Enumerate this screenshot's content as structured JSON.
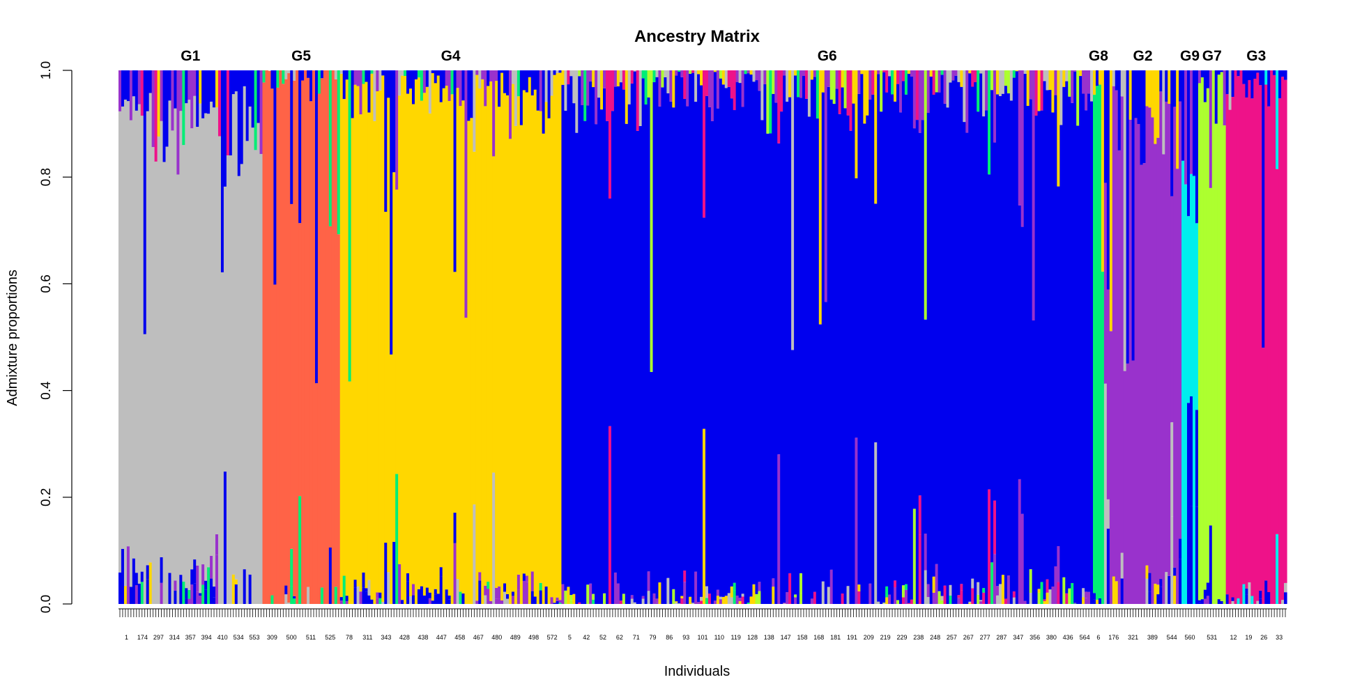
{
  "chart_data": {
    "type": "bar",
    "stacked": true,
    "title": "Ancestry Matrix",
    "xlabel": "Individuals",
    "ylabel": "Admixture proportions",
    "ylim": [
      0,
      1
    ],
    "yticks": [
      "0.0",
      "0.2",
      "0.4",
      "0.6",
      "0.8",
      "1.0"
    ],
    "component_colors": {
      "grey": "#bebebe",
      "tomato": "#ff6347",
      "gold": "#ffd700",
      "blue": "#0000ee",
      "springgreen": "#00ee76",
      "purple": "#9932cc",
      "cyan": "#00eeee",
      "greenyellow": "#adff2f",
      "deeppink": "#ee1289",
      "orange": "#ffa500"
    },
    "groups": [
      {
        "label": "G1",
        "n_individuals": 52,
        "main": "grey",
        "main_mean": 0.86,
        "minor": [
          {
            "c": "blue",
            "w": 0.6
          },
          {
            "c": "purple",
            "w": 0.25
          },
          {
            "c": "springgreen",
            "w": 0.05
          },
          {
            "c": "gold",
            "w": 0.05
          },
          {
            "c": "deeppink",
            "w": 0.05
          }
        ],
        "tick_labels": [
          "1",
          "174",
          "297",
          "314",
          "357",
          "394",
          "410",
          "534",
          "553"
        ]
      },
      {
        "label": "G5",
        "n_individuals": 28,
        "main": "tomato",
        "main_mean": 0.98,
        "minor": [
          {
            "c": "blue",
            "w": 0.4
          },
          {
            "c": "grey",
            "w": 0.3
          },
          {
            "c": "springgreen",
            "w": 0.3
          }
        ],
        "tick_labels": [
          "309",
          "500",
          "511",
          "525"
        ]
      },
      {
        "label": "G4",
        "n_individuals": 80,
        "main": "gold",
        "main_mean": 0.93,
        "minor": [
          {
            "c": "blue",
            "w": 0.45
          },
          {
            "c": "purple",
            "w": 0.3
          },
          {
            "c": "grey",
            "w": 0.15
          },
          {
            "c": "springgreen",
            "w": 0.1
          }
        ],
        "tick_labels": [
          "78",
          "311",
          "343",
          "428",
          "438",
          "447",
          "458",
          "467",
          "480",
          "489",
          "498",
          "572"
        ]
      },
      {
        "label": "G6",
        "n_individuals": 192,
        "main": "blue",
        "main_mean": 0.94,
        "minor": [
          {
            "c": "purple",
            "w": 0.3
          },
          {
            "c": "grey",
            "w": 0.2
          },
          {
            "c": "gold",
            "w": 0.15
          },
          {
            "c": "deeppink",
            "w": 0.15
          },
          {
            "c": "springgreen",
            "w": 0.1
          },
          {
            "c": "greenyellow",
            "w": 0.1
          }
        ],
        "tick_labels": [
          "5",
          "42",
          "52",
          "62",
          "71",
          "79",
          "86",
          "93",
          "101",
          "110",
          "119",
          "128",
          "138",
          "147",
          "158",
          "168",
          "181",
          "191",
          "209",
          "219",
          "229",
          "238",
          "248",
          "257",
          "267",
          "277",
          "287",
          "347",
          "356",
          "380",
          "436",
          "564"
        ]
      },
      {
        "label": "G8",
        "n_individuals": 4,
        "main": "springgreen",
        "main_mean": 0.96,
        "minor": [
          {
            "c": "gold",
            "w": 0.5
          },
          {
            "c": "blue",
            "w": 0.5
          }
        ],
        "tick_labels": [
          "6"
        ]
      },
      {
        "label": "G2",
        "n_individuals": 28,
        "main": "purple",
        "main_mean": 0.86,
        "minor": [
          {
            "c": "blue",
            "w": 0.5
          },
          {
            "c": "gold",
            "w": 0.3
          },
          {
            "c": "grey",
            "w": 0.2
          }
        ],
        "tick_labels": [
          "176",
          "321",
          "389",
          "544"
        ]
      },
      {
        "label": "G9",
        "n_individuals": 6,
        "main": "cyan",
        "main_mean": 0.8,
        "minor": [
          {
            "c": "blue",
            "w": 0.8
          },
          {
            "c": "purple",
            "w": 0.2
          }
        ],
        "tick_labels": [
          "560"
        ]
      },
      {
        "label": "G7",
        "n_individuals": 10,
        "main": "greenyellow",
        "main_mean": 0.95,
        "minor": [
          {
            "c": "blue",
            "w": 0.7
          },
          {
            "c": "purple",
            "w": 0.3
          }
        ],
        "tick_labels": [
          "531"
        ]
      },
      {
        "label": "G3",
        "n_individuals": 22,
        "main": "deeppink",
        "main_mean": 0.97,
        "minor": [
          {
            "c": "blue",
            "w": 0.6
          },
          {
            "c": "cyan",
            "w": 0.2
          },
          {
            "c": "grey",
            "w": 0.2
          }
        ],
        "tick_labels": [
          "12",
          "19",
          "26",
          "33"
        ]
      }
    ]
  }
}
